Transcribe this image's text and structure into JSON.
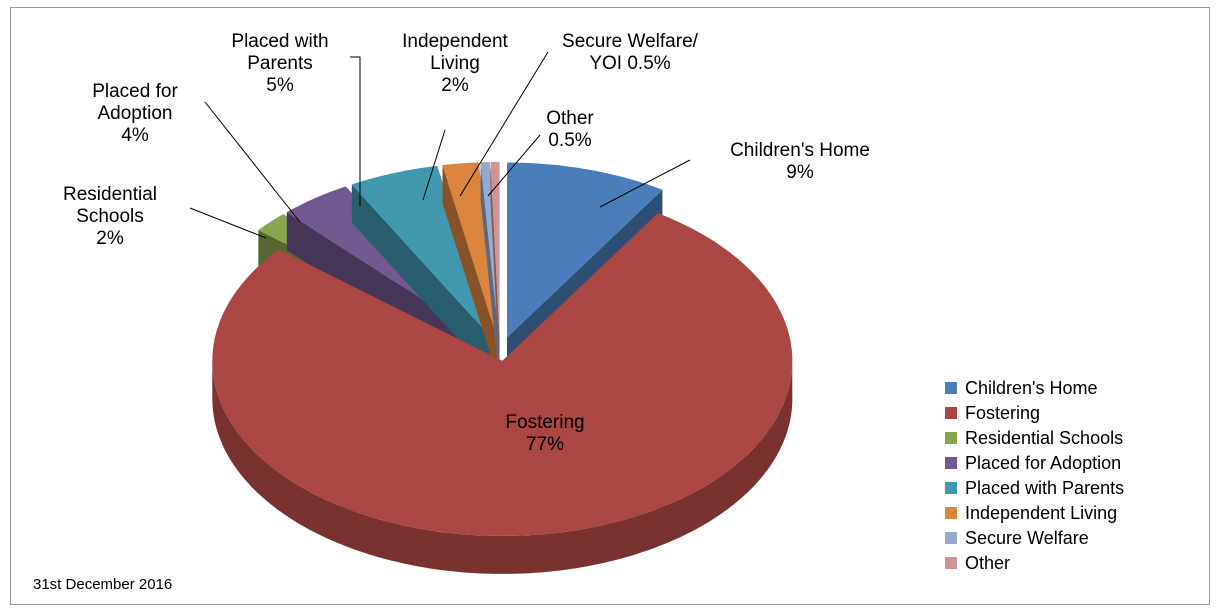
{
  "chart_data": {
    "type": "pie3d",
    "categories": [
      "Children's Home",
      "Fostering",
      "Residential Schools",
      "Placed for Adoption",
      "Placed with Parents",
      "Independent Living",
      "Secure Welfare",
      "Other"
    ],
    "values": [
      9,
      77,
      2,
      4,
      5,
      2,
      0.5,
      0.5
    ],
    "value_labels": [
      "9%",
      "77%",
      "2%",
      "4%",
      "5%",
      "2%",
      "0.5%",
      "0.5%"
    ],
    "data_label_names": [
      "Children's Home",
      "Fostering",
      "Residential Schools",
      "Placed for Adoption",
      "Placed with Parents",
      "Independent Living",
      "Secure Welfare/ YOI",
      "Other"
    ],
    "colors": [
      "#4a7ebb",
      "#aa4643",
      "#89a54e",
      "#71588f",
      "#4198af",
      "#db843d",
      "#93a9cf",
      "#d19392"
    ],
    "legend": "right",
    "note": "31st December 2016"
  }
}
